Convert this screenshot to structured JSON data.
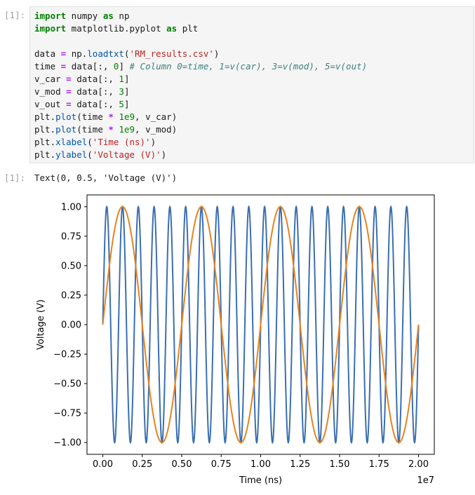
{
  "notebook": {
    "input_prompt": "[1]:",
    "output_prompt": "[1]:",
    "code": [
      [
        {
          "t": "import",
          "c": "kw"
        },
        {
          "t": " numpy "
        },
        {
          "t": "as",
          "c": "kw"
        },
        {
          "t": " np"
        }
      ],
      [
        {
          "t": "import",
          "c": "kw"
        },
        {
          "t": " matplotlib.pyplot "
        },
        {
          "t": "as",
          "c": "kw"
        },
        {
          "t": " plt"
        }
      ],
      [],
      [
        {
          "t": "data "
        },
        {
          "t": "=",
          "c": "op"
        },
        {
          "t": " np."
        },
        {
          "t": "loadtxt",
          "c": "fn"
        },
        {
          "t": "("
        },
        {
          "t": "'RM_results.csv'",
          "c": "str"
        },
        {
          "t": ")"
        }
      ],
      [
        {
          "t": "time "
        },
        {
          "t": "=",
          "c": "op"
        },
        {
          "t": " data[:, "
        },
        {
          "t": "0",
          "c": "num"
        },
        {
          "t": "] "
        },
        {
          "t": "# Column 0=time, 1=v(car), 3=v(mod), 5=v(out)",
          "c": "cm"
        }
      ],
      [
        {
          "t": "v_car "
        },
        {
          "t": "=",
          "c": "op"
        },
        {
          "t": " data[:, "
        },
        {
          "t": "1",
          "c": "num"
        },
        {
          "t": "]"
        }
      ],
      [
        {
          "t": "v_mod "
        },
        {
          "t": "=",
          "c": "op"
        },
        {
          "t": " data[:, "
        },
        {
          "t": "3",
          "c": "num"
        },
        {
          "t": "]"
        }
      ],
      [
        {
          "t": "v_out "
        },
        {
          "t": "=",
          "c": "op"
        },
        {
          "t": " data[:, "
        },
        {
          "t": "5",
          "c": "num"
        },
        {
          "t": "]"
        }
      ],
      [
        {
          "t": "plt."
        },
        {
          "t": "plot",
          "c": "fn"
        },
        {
          "t": "(time "
        },
        {
          "t": "*",
          "c": "op"
        },
        {
          "t": " "
        },
        {
          "t": "1e9",
          "c": "num"
        },
        {
          "t": ", v_car)"
        }
      ],
      [
        {
          "t": "plt."
        },
        {
          "t": "plot",
          "c": "fn"
        },
        {
          "t": "(time "
        },
        {
          "t": "*",
          "c": "op"
        },
        {
          "t": " "
        },
        {
          "t": "1e9",
          "c": "num"
        },
        {
          "t": ", v_mod)"
        }
      ],
      [
        {
          "t": "plt."
        },
        {
          "t": "xlabel",
          "c": "fn"
        },
        {
          "t": "("
        },
        {
          "t": "'Time (ns)'",
          "c": "str"
        },
        {
          "t": ")"
        }
      ],
      [
        {
          "t": "plt."
        },
        {
          "t": "ylabel",
          "c": "fn"
        },
        {
          "t": "("
        },
        {
          "t": "'Voltage (V)'",
          "c": "str"
        },
        {
          "t": ")"
        }
      ]
    ],
    "output_text": "Text(0, 0.5, 'Voltage (V)')"
  },
  "chart_data": {
    "type": "line",
    "title": "",
    "xlabel": "Time (ns)",
    "ylabel": "Voltage (V)",
    "x_offset_text": "1e7",
    "xlim": [
      -0.1,
      2.1
    ],
    "ylim": [
      -1.1,
      1.1
    ],
    "x_ticks": [
      "0.00",
      "0.25",
      "0.50",
      "0.75",
      "1.00",
      "1.25",
      "1.50",
      "1.75",
      "2.00"
    ],
    "x_tick_values": [
      0,
      0.25,
      0.5,
      0.75,
      1.0,
      1.25,
      1.5,
      1.75,
      2.0
    ],
    "y_ticks": [
      "1.00",
      "0.75",
      "0.50",
      "0.25",
      "0.00",
      "−0.25",
      "−0.50",
      "−0.75",
      "−1.00"
    ],
    "y_tick_values": [
      1.0,
      0.75,
      0.5,
      0.25,
      0.0,
      -0.25,
      -0.5,
      -0.75,
      -1.0
    ],
    "grid": false,
    "series": [
      {
        "function": "sine",
        "amplitude": 1.0,
        "cycles": 20,
        "x_start": 0,
        "x_end": 2.0,
        "color": "#3b6fae"
      },
      {
        "function": "sine",
        "amplitude": 1.0,
        "cycles": 4,
        "x_start": 0,
        "x_end": 2.0,
        "color": "#e8821e"
      }
    ]
  }
}
